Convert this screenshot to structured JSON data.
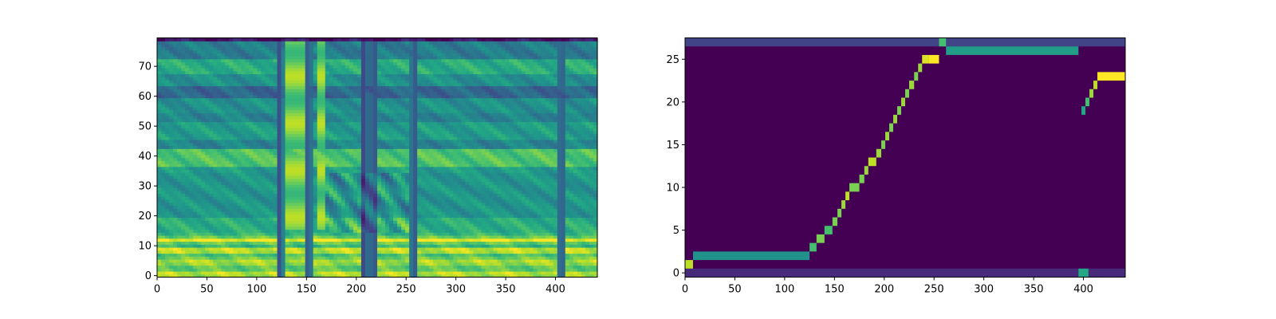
{
  "chart_data": [
    {
      "type": "heatmap",
      "title": "",
      "xlabel": "",
      "ylabel": "",
      "colormap": "viridis",
      "xlim": [
        0,
        442
      ],
      "ylim": [
        -0.5,
        79.5
      ],
      "x_ticks": [
        0,
        50,
        100,
        150,
        200,
        250,
        300,
        350,
        400
      ],
      "y_ticks": [
        0,
        10,
        20,
        30,
        40,
        50,
        60,
        70
      ],
      "grid": false,
      "dark_vertical_bands_x": [
        123,
        152,
        207,
        213,
        218,
        258,
        406
      ],
      "bright_vertical_bands_x": [
        [
          128,
          148
        ],
        [
          162,
          170
        ]
      ],
      "bright_low_rows_y": [
        0,
        14
      ],
      "dark_horizontal_bands_y": [
        20,
        35,
        45,
        53,
        62,
        75
      ]
    },
    {
      "type": "heatmap",
      "title": "",
      "xlabel": "",
      "ylabel": "",
      "colormap": "viridis",
      "xlim": [
        0,
        442
      ],
      "ylim": [
        -0.5,
        27.5
      ],
      "x_ticks": [
        0,
        50,
        100,
        150,
        200,
        250,
        300,
        350,
        400
      ],
      "y_ticks": [
        0,
        5,
        10,
        15,
        20,
        25
      ],
      "grid": false,
      "alignment_path": [
        {
          "x": [
            0,
            8
          ],
          "y": 1,
          "v": 0.9
        },
        {
          "x": [
            8,
            125
          ],
          "y": 2,
          "v": 0.5
        },
        {
          "x": [
            125,
            132
          ],
          "y": 3,
          "v": 0.7
        },
        {
          "x": [
            132,
            140
          ],
          "y": 4,
          "v": 0.8
        },
        {
          "x": [
            140,
            148
          ],
          "y": 5,
          "v": 0.7
        },
        {
          "x": [
            148,
            153
          ],
          "y": 6,
          "v": 0.8
        },
        {
          "x": [
            153,
            157
          ],
          "y": 7,
          "v": 0.8
        },
        {
          "x": [
            157,
            161
          ],
          "y": 8,
          "v": 0.85
        },
        {
          "x": [
            161,
            165
          ],
          "y": 9,
          "v": 0.9
        },
        {
          "x": [
            165,
            175
          ],
          "y": 10,
          "v": 0.8
        },
        {
          "x": [
            175,
            180
          ],
          "y": 11,
          "v": 0.8
        },
        {
          "x": [
            180,
            184
          ],
          "y": 12,
          "v": 0.85
        },
        {
          "x": [
            184,
            192
          ],
          "y": 13,
          "v": 0.9
        },
        {
          "x": [
            192,
            197
          ],
          "y": 14,
          "v": 0.85
        },
        {
          "x": [
            197,
            201
          ],
          "y": 15,
          "v": 0.8
        },
        {
          "x": [
            201,
            205
          ],
          "y": 16,
          "v": 0.85
        },
        {
          "x": [
            205,
            209
          ],
          "y": 17,
          "v": 0.8
        },
        {
          "x": [
            209,
            213
          ],
          "y": 18,
          "v": 0.85
        },
        {
          "x": [
            213,
            217
          ],
          "y": 19,
          "v": 0.8
        },
        {
          "x": [
            217,
            221
          ],
          "y": 20,
          "v": 0.85
        },
        {
          "x": [
            221,
            225
          ],
          "y": 21,
          "v": 0.8
        },
        {
          "x": [
            225,
            230
          ],
          "y": 22,
          "v": 0.85
        },
        {
          "x": [
            230,
            234
          ],
          "y": 23,
          "v": 0.8
        },
        {
          "x": [
            234,
            238
          ],
          "y": 24,
          "v": 0.85
        },
        {
          "x": [
            238,
            245
          ],
          "y": 25,
          "v": 0.95
        },
        {
          "x": [
            245,
            255
          ],
          "y": 25,
          "v": 1.0
        },
        {
          "x": [
            255,
            262
          ],
          "y": 27,
          "v": 0.7
        },
        {
          "x": [
            262,
            395
          ],
          "y": 26,
          "v": 0.55
        },
        {
          "x": [
            398,
            402
          ],
          "y": 19,
          "v": 0.6
        },
        {
          "x": [
            402,
            406
          ],
          "y": 20,
          "v": 0.7
        },
        {
          "x": [
            406,
            410
          ],
          "y": 21,
          "v": 0.85
        },
        {
          "x": [
            410,
            414
          ],
          "y": 22,
          "v": 0.9
        },
        {
          "x": [
            414,
            442
          ],
          "y": 23,
          "v": 1.0
        }
      ],
      "faint_rows": [
        {
          "x": [
            0,
            442
          ],
          "y": 27,
          "v": 0.2
        },
        {
          "x": [
            0,
            442
          ],
          "y": 0,
          "v": 0.12
        },
        {
          "x": [
            395,
            405
          ],
          "y": 0,
          "v": 0.6
        }
      ]
    }
  ]
}
